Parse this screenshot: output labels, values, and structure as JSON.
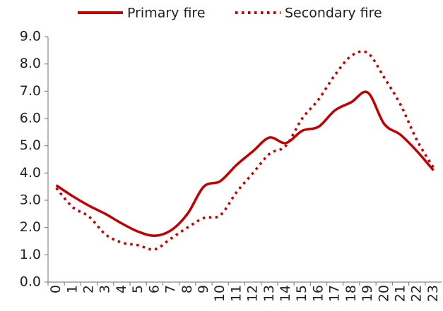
{
  "chart_data": {
    "type": "line",
    "categories": [
      "0",
      "1",
      "2",
      "3",
      "4",
      "5",
      "6",
      "7",
      "8",
      "9",
      "10",
      "11",
      "12",
      "13",
      "14",
      "15",
      "16",
      "17",
      "18",
      "19",
      "20",
      "21",
      "22",
      "23"
    ],
    "series": [
      {
        "name": "Primary fire",
        "color": "#c00000",
        "style": "solid",
        "values": [
          3.55,
          3.15,
          2.8,
          2.5,
          2.15,
          1.85,
          1.7,
          1.9,
          2.5,
          3.5,
          3.7,
          4.3,
          4.8,
          5.3,
          5.1,
          5.55,
          5.7,
          6.3,
          6.6,
          6.95,
          5.8,
          5.4,
          4.8,
          4.1
        ]
      },
      {
        "name": "Secondary fire",
        "color": "#c00000",
        "style": "dotted",
        "values": [
          3.45,
          2.75,
          2.4,
          1.75,
          1.45,
          1.35,
          1.2,
          1.6,
          2.0,
          2.35,
          2.45,
          3.3,
          4.0,
          4.7,
          5.0,
          6.0,
          6.7,
          7.6,
          8.3,
          8.4,
          7.5,
          6.5,
          5.2,
          4.2
        ]
      }
    ],
    "ylim": [
      0,
      9
    ],
    "yticks": [
      {
        "value": 0,
        "label": "0.0"
      },
      {
        "value": 1,
        "label": "1.0"
      },
      {
        "value": 2,
        "label": "2.0"
      },
      {
        "value": 3,
        "label": "3.0"
      },
      {
        "value": 4,
        "label": "4.0"
      },
      {
        "value": 5,
        "label": "5.0"
      },
      {
        "value": 6,
        "label": "6.0"
      },
      {
        "value": 7,
        "label": "7.0"
      },
      {
        "value": 8,
        "label": "8.0"
      },
      {
        "value": 9,
        "label": "9.0"
      }
    ],
    "legend": "top"
  }
}
